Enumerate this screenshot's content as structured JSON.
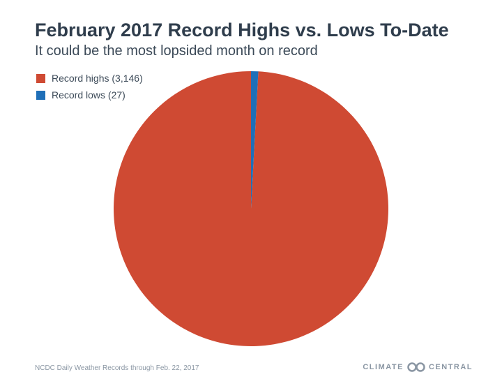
{
  "header": {
    "title": "February 2017 Record Highs vs. Lows To-Date",
    "subtitle": "It could be the most lopsided month on record"
  },
  "legend": [
    {
      "label": "Record highs (3,146)",
      "color": "#cf4a33"
    },
    {
      "label": "Record lows (27)",
      "color": "#1f6fb8"
    }
  ],
  "footer": {
    "source": "NCDC Daily Weather Records through Feb. 22, 2017",
    "logo_left": "CLIMATE",
    "logo_right": "CENTRAL"
  },
  "chart_data": {
    "type": "pie",
    "title": "February 2017 Record Highs vs. Lows To-Date",
    "subtitle": "It could be the most lopsided month on record",
    "slices": [
      {
        "label": "Record highs (3,146)",
        "value": 3146,
        "color": "#cf4a33"
      },
      {
        "label": "Record lows (27)",
        "value": 27,
        "color": "#1f6fb8"
      }
    ],
    "legend_position": "top-left"
  }
}
